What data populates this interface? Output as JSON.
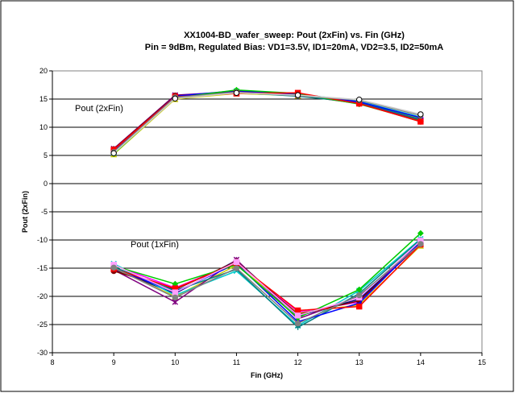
{
  "chart_data": {
    "type": "line",
    "title": "XX1004-BD_wafer_sweep: Pout (2xFin) vs. Fin (GHz)",
    "subtitle": "Pin = 9dBm, Regulated Bias: VD1=3.5V, ID1=20mA, VD2=3.5, ID2=50mA",
    "xlabel": "Fin (GHz)",
    "ylabel": "Pout (2xFin)",
    "xlim": [
      8,
      15
    ],
    "ylim": [
      -30,
      20
    ],
    "xticks": [
      "8",
      "9",
      "10",
      "11",
      "12",
      "13",
      "14",
      "15"
    ],
    "yticks": [
      "-30",
      "-25",
      "-20",
      "-15",
      "-10",
      "-5",
      "0",
      "5",
      "10",
      "15",
      "20"
    ],
    "grid": "horizontal",
    "annotations": [
      {
        "text": "Pout (2xFin)",
        "x": 9.0,
        "y": 13.5
      },
      {
        "text": "Pout (1xFin)",
        "x": 9.3,
        "y": -10.8
      }
    ],
    "x": [
      9,
      10,
      11,
      12,
      13,
      14
    ],
    "series": [
      {
        "color": "#000080",
        "marker": "diamond",
        "values": [
          6.0,
          15.6,
          16.2,
          15.8,
          14.5,
          11.5
        ]
      },
      {
        "color": "#ff00ff",
        "marker": "square",
        "values": [
          5.8,
          15.5,
          16.0,
          15.7,
          14.3,
          11.3
        ]
      },
      {
        "color": "#cccc00",
        "marker": "triangle",
        "values": [
          5.2,
          15.0,
          16.0,
          15.6,
          14.4,
          11.6
        ]
      },
      {
        "color": "#00cccc",
        "marker": "x",
        "values": [
          5.5,
          15.4,
          16.4,
          15.9,
          14.6,
          11.8
        ]
      },
      {
        "color": "#800080",
        "marker": "star",
        "values": [
          6.2,
          15.7,
          16.3,
          15.8,
          14.3,
          11.2
        ]
      },
      {
        "color": "#800000",
        "marker": "circle",
        "values": [
          6.1,
          15.6,
          16.1,
          15.7,
          14.2,
          11.0
        ]
      },
      {
        "color": "#008080",
        "marker": "plus",
        "values": [
          5.7,
          15.3,
          16.2,
          15.5,
          14.4,
          11.4
        ]
      },
      {
        "color": "#0000ff",
        "marker": "dash",
        "values": [
          5.9,
          15.5,
          16.5,
          15.9,
          14.5,
          11.7
        ]
      },
      {
        "color": "#00cc00",
        "marker": "diamond",
        "values": [
          5.3,
          15.2,
          16.6,
          16.0,
          14.1,
          11.1
        ]
      },
      {
        "color": "#ff0000",
        "marker": "square",
        "values": [
          6.0,
          15.4,
          16.0,
          16.1,
          14.2,
          11.0
        ]
      },
      {
        "color": "#808080",
        "marker": "circle",
        "values": [
          5.6,
          15.3,
          16.2,
          15.6,
          14.8,
          12.1
        ]
      },
      {
        "color": "#ffffff",
        "marker": "circle",
        "values": [
          5.4,
          15.1,
          16.1,
          15.7,
          14.9,
          12.3
        ]
      },
      {
        "color": "#000080",
        "marker": "diamond",
        "values": [
          -15.2,
          -19.5,
          -13.6,
          -23.5,
          -20.5,
          -10.5
        ]
      },
      {
        "color": "#ff00ff",
        "marker": "square",
        "values": [
          -14.5,
          -18.5,
          -14.0,
          -22.8,
          -21.0,
          -10.2
        ]
      },
      {
        "color": "#cccc00",
        "marker": "triangle",
        "values": [
          -15.0,
          -20.0,
          -14.5,
          -23.0,
          -21.5,
          -11.0
        ]
      },
      {
        "color": "#00cccc",
        "marker": "x",
        "values": [
          -14.2,
          -19.8,
          -15.5,
          -25.2,
          -19.0,
          -9.8
        ]
      },
      {
        "color": "#800080",
        "marker": "star",
        "values": [
          -15.3,
          -21.0,
          -13.5,
          -24.0,
          -20.0,
          -10.4
        ]
      },
      {
        "color": "#800000",
        "marker": "circle",
        "values": [
          -15.5,
          -18.8,
          -13.8,
          -23.2,
          -20.8,
          -10.6
        ]
      },
      {
        "color": "#008080",
        "marker": "plus",
        "values": [
          -14.8,
          -19.0,
          -15.2,
          -25.5,
          -19.5,
          -9.9
        ]
      },
      {
        "color": "#0000ff",
        "marker": "dash",
        "values": [
          -15.0,
          -19.2,
          -14.2,
          -24.5,
          -21.2,
          -10.3
        ]
      },
      {
        "color": "#00cc00",
        "marker": "diamond",
        "values": [
          -14.6,
          -17.8,
          -14.4,
          -23.8,
          -18.8,
          -8.8
        ]
      },
      {
        "color": "#ff0000",
        "marker": "square",
        "values": [
          -15.1,
          -18.6,
          -14.1,
          -22.5,
          -21.8,
          -10.8
        ]
      },
      {
        "color": "#ffa0ff",
        "marker": "square",
        "values": [
          -14.4,
          -19.3,
          -13.9,
          -23.4,
          -20.2,
          -10.1
        ]
      },
      {
        "color": "#808080",
        "marker": "circle",
        "values": [
          -14.9,
          -20.2,
          -15.0,
          -24.8,
          -19.8,
          -10.7
        ]
      }
    ]
  }
}
